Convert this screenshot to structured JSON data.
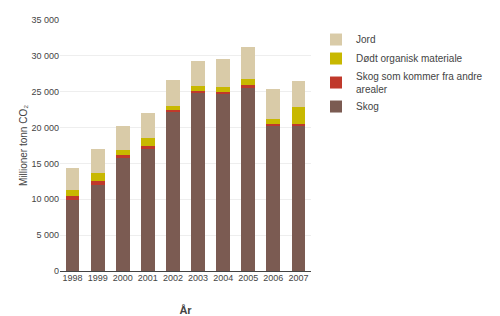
{
  "chart_data": {
    "type": "bar",
    "stacked": true,
    "xlabel": "År",
    "ylabel": "Millioner tonn CO₂",
    "categories": [
      "1998",
      "1999",
      "2000",
      "2001",
      "2002",
      "2003",
      "2004",
      "2005",
      "2006",
      "2007"
    ],
    "series": [
      {
        "name": "Skog",
        "color": "#7B5B52",
        "values": [
          9900,
          12000,
          15800,
          17000,
          22200,
          24800,
          24700,
          25500,
          20300,
          20300
        ]
      },
      {
        "name": "Skog som kommer fra andre\narealer",
        "color": "#C0392B",
        "values": [
          500,
          500,
          400,
          500,
          200,
          300,
          200,
          500,
          200,
          200
        ]
      },
      {
        "name": "Dødt organisk materiale",
        "color": "#C8B800",
        "values": [
          900,
          1100,
          700,
          1000,
          600,
          700,
          700,
          800,
          700,
          2300
        ]
      },
      {
        "name": "Jord",
        "color": "#D9CBA8",
        "values": [
          3100,
          3400,
          3300,
          3500,
          3700,
          3500,
          3900,
          4400,
          4200,
          3700
        ]
      }
    ],
    "ylim": [
      0,
      35000
    ],
    "yticks": [
      0,
      {
        "value": 5000,
        "label": "5 000"
      },
      {
        "value": 10000,
        "label": "10 000"
      },
      {
        "value": 15000,
        "label": "15 000"
      },
      {
        "value": 20000,
        "label": "20 000"
      },
      {
        "value": 25000,
        "label": "25 000"
      },
      {
        "value": 30000,
        "label": "30 000"
      },
      {
        "value": 35000,
        "label": "35 000"
      }
    ],
    "grid": true,
    "legend": "right"
  }
}
